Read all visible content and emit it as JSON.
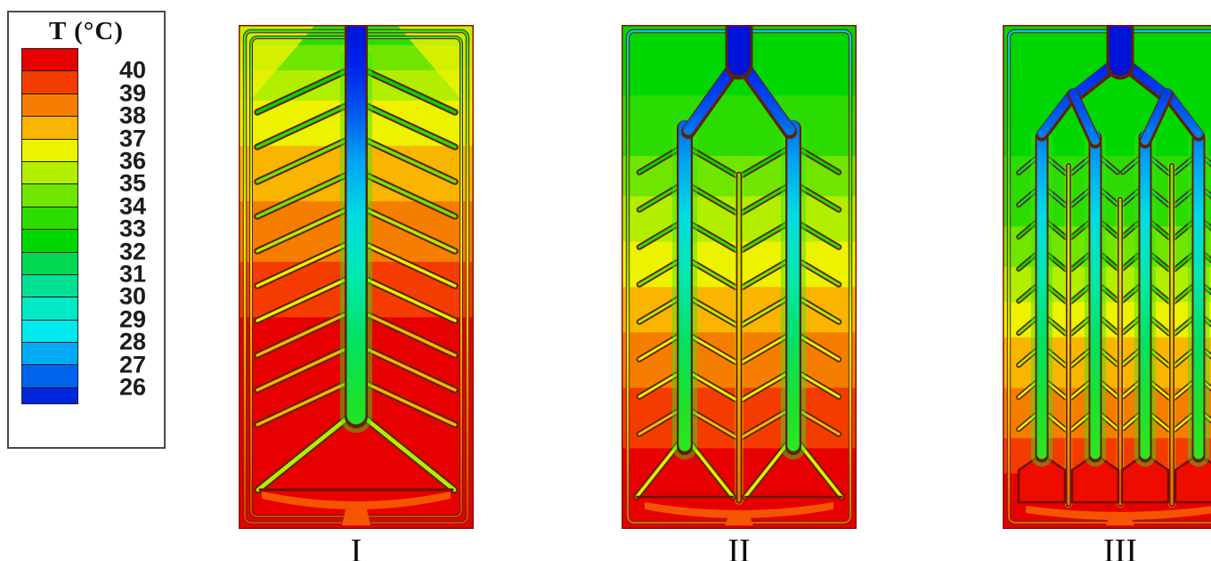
{
  "chart_data": {
    "type": "heatmap",
    "subtype": "cfd-temperature-contour-comparison",
    "title": "",
    "layout": {
      "legend_position": "left",
      "panel_count": 3
    },
    "colorbar": {
      "title": "T (°C)",
      "unit": "°C",
      "ticks": [
        40,
        39,
        38,
        37,
        36,
        35,
        34,
        33,
        32,
        31,
        30,
        29,
        28,
        27,
        26
      ],
      "band_colors_hot_to_cold": [
        "#e70000",
        "#f43c00",
        "#f57d00",
        "#f9b500",
        "#edf200",
        "#b2ee00",
        "#70e600",
        "#2cdc00",
        "#00d600",
        "#00da52",
        "#00e194",
        "#00e9c6",
        "#00e9ec",
        "#00aaf2",
        "#0063ee",
        "#0026e0"
      ]
    },
    "panels": [
      {
        "label": "I",
        "design": "Single central inlet trunk with herringbone (leaf-vein) branch channels and one triangular bottom collector",
        "inlet_channels": 1,
        "inlet": {
          "location": "top center",
          "temperature_c": 26
        },
        "hottest_region": {
          "location": "bottom",
          "temperature_c": 40
        },
        "vertical_temperature_profile": [
          {
            "t": 33,
            "to": 0.04
          },
          {
            "t": 34,
            "to": 0.09
          },
          {
            "t": 35,
            "to": 0.15
          },
          {
            "t": 36,
            "to": 0.24
          },
          {
            "t": 37,
            "to": 0.35
          },
          {
            "t": 38,
            "to": 0.47
          },
          {
            "t": 39,
            "to": 0.58
          },
          {
            "t": 40,
            "to": 1.0
          }
        ]
      },
      {
        "label": "II",
        "design": "Inlet bifurcates into two vertical trunks with herringbone cells, a central collector and two triangular bottom collectors",
        "inlet_channels": 2,
        "inlet": {
          "location": "top center",
          "temperature_c": 26
        },
        "hottest_region": {
          "location": "bottom",
          "temperature_c": 40
        },
        "vertical_temperature_profile": [
          {
            "t": 32,
            "to": 0.14
          },
          {
            "t": 33,
            "to": 0.26
          },
          {
            "t": 34,
            "to": 0.34
          },
          {
            "t": 35,
            "to": 0.43
          },
          {
            "t": 36,
            "to": 0.52
          },
          {
            "t": 37,
            "to": 0.61
          },
          {
            "t": 38,
            "to": 0.72
          },
          {
            "t": 39,
            "to": 0.84
          },
          {
            "t": 40,
            "to": 1.0
          }
        ]
      },
      {
        "label": "III",
        "design": "Inlet bifurcates twice into four vertical trunks with fine herringbone cells and four bottom collectors",
        "inlet_channels": 4,
        "inlet": {
          "location": "top center",
          "temperature_c": 26
        },
        "hottest_region": {
          "location": "bottom",
          "temperature_c": 40
        },
        "vertical_temperature_profile": [
          {
            "t": 32,
            "to": 0.26
          },
          {
            "t": 33,
            "to": 0.4
          },
          {
            "t": 34,
            "to": 0.48
          },
          {
            "t": 35,
            "to": 0.55
          },
          {
            "t": 36,
            "to": 0.62
          },
          {
            "t": 37,
            "to": 0.72
          },
          {
            "t": 38,
            "to": 0.82
          },
          {
            "t": 39,
            "to": 0.89
          },
          {
            "t": 40,
            "to": 1.0
          }
        ]
      }
    ]
  }
}
